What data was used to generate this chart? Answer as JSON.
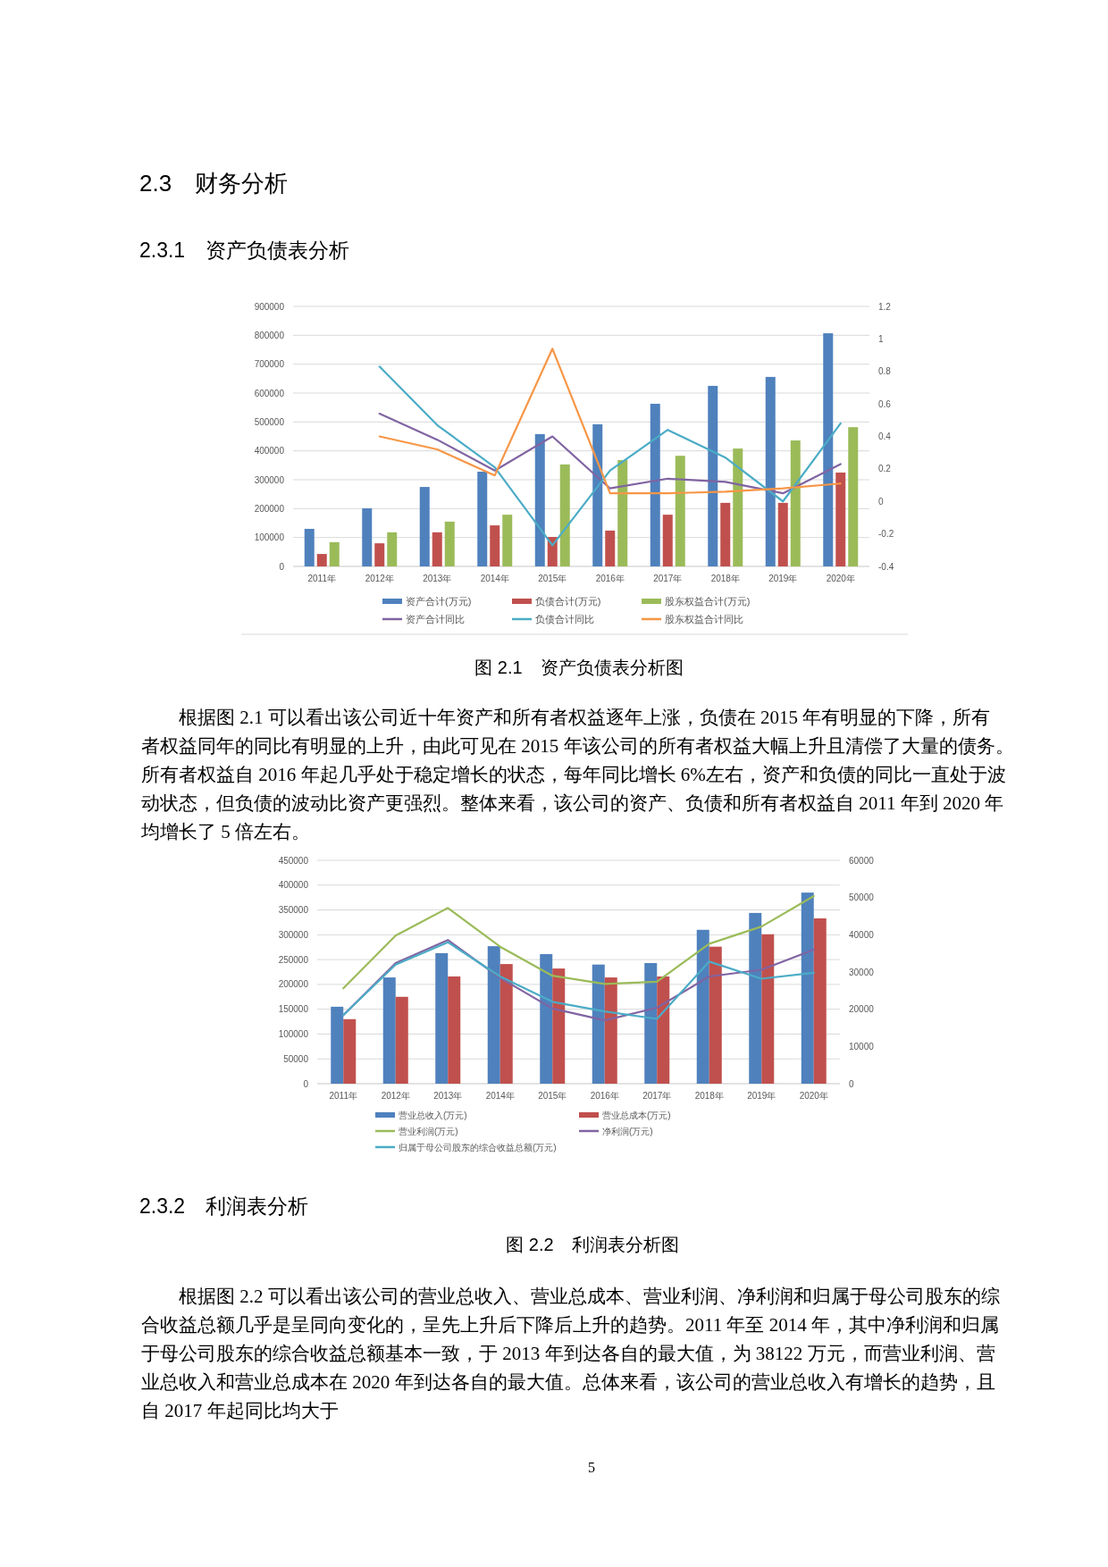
{
  "chart_data": [
    {
      "type": "bar",
      "title": "图 2.1　资产负债表分析图",
      "annotations": [
        "2.3　财务分析",
        "2.3.1　资产负债表分析",
        "根据图 2.1 可以看出该公司近十年资产和所有者权益逐年上涨，负债在 2015 年有明显的下降，所有者权益同年的同比有明显的上升，由此可见在 2015 年该公司的所有者权益大幅上升且清偿了大量的债务。所有者权益自 2016 年起几乎处于稳定增长的状态，每年同比增长 6%左右，资产和负债的同比一直处于波动状态，但负债的波动比资产更强烈。整体来看，该公司的资产、负债和所有者权益自 2011 年到 2020 年均增长了 5 倍左右。"
      ],
      "categories": [
        "2011年",
        "2012年",
        "2013年",
        "2014年",
        "2015年",
        "2016年",
        "2017年",
        "2018年",
        "2019年",
        "2020年"
      ],
      "series": [
        {
          "name": "资产合计(万元)",
          "color": "#4f81bd",
          "values": [
            130000,
            201000,
            275000,
            328000,
            458000,
            492000,
            563000,
            625000,
            656000,
            807000
          ]
        },
        {
          "name": "负债合计(万元)",
          "color": "#c0504d",
          "values": [
            43000,
            80000,
            118000,
            142000,
            102000,
            124000,
            179000,
            220000,
            220000,
            325000
          ]
        },
        {
          "name": "股东权益合计(万元)",
          "color": "#9bbb59",
          "values": [
            84000,
            118000,
            155000,
            179000,
            353000,
            368000,
            383000,
            408000,
            436000,
            482000
          ]
        },
        {
          "name": "资产合计同比",
          "type": "line",
          "axis": "y2",
          "color": "#8064a2",
          "values": [
            null,
            0.54,
            0.38,
            0.19,
            0.4,
            0.08,
            0.14,
            0.12,
            0.05,
            0.23
          ]
        },
        {
          "name": "负债合计同比",
          "type": "line",
          "axis": "y2",
          "color": "#4bacc6",
          "values": [
            null,
            0.83,
            0.47,
            0.21,
            -0.27,
            0.19,
            0.44,
            0.27,
            0.0,
            0.48
          ]
        },
        {
          "name": "股东权益合计同比",
          "type": "line",
          "axis": "y2",
          "color": "#f79646",
          "values": [
            null,
            0.4,
            0.32,
            0.16,
            0.94,
            0.05,
            0.05,
            0.06,
            0.08,
            0.11
          ]
        }
      ],
      "ylim": [
        0,
        900000
      ],
      "yticks": [
        0,
        100000,
        200000,
        300000,
        400000,
        500000,
        600000,
        700000,
        800000,
        900000
      ],
      "y2lim": [
        -0.4,
        1.2
      ],
      "y2ticks": [
        -0.4,
        -0.2,
        0,
        0.2,
        0.4,
        0.6,
        0.8,
        1,
        1.2
      ],
      "grid": "y",
      "legend": "bottom",
      "marker": "none"
    },
    {
      "type": "bar",
      "title": "图 2.2　利润表分析图",
      "annotations": [
        "2.3.2　利润表分析",
        "根据图 2.2 可以看出该公司的营业总收入、营业总成本、营业利润、净利润和归属于母公司股东的综合收益总额几乎是呈同向变化的，呈先上升后下降后上升的趋势。2011 年至 2014 年，其中净利润和归属于母公司股东的综合收益总额基本一致，于 2013 年到达各自的最大值，为 38122 万元，而营业利润、营业总收入和营业总成本在 2020 年到达各自的最大值。总体来看，该公司的营业总收入有增长的趋势，且自 2017 年起同比均大于",
        "5"
      ],
      "categories": [
        "2011年",
        "2012年",
        "2013年",
        "2014年",
        "2015年",
        "2016年",
        "2017年",
        "2018年",
        "2019年",
        "2020年"
      ],
      "series": [
        {
          "name": "营业总收入(万元)",
          "color": "#4f81bd",
          "values": [
            155000,
            214000,
            263000,
            277000,
            261000,
            240000,
            243000,
            310000,
            344000,
            385000
          ]
        },
        {
          "name": "营业总成本(万元)",
          "color": "#c0504d",
          "values": [
            130000,
            175000,
            216000,
            241000,
            232000,
            214000,
            216000,
            276000,
            301000,
            333000
          ]
        },
        {
          "name": "营业利润(万元)",
          "type": "line",
          "axis": "y2",
          "color": "#9bbb59",
          "values": [
            25600,
            39800,
            47200,
            36800,
            29000,
            26800,
            27400,
            37600,
            42200,
            50400
          ]
        },
        {
          "name": "净利润(万元)",
          "type": "line",
          "axis": "y2",
          "color": "#8064a2",
          "values": [
            18400,
            32400,
            38600,
            28400,
            20200,
            17000,
            20400,
            28800,
            30600,
            36000
          ]
        },
        {
          "name": "归属于母公司股东的综合收益总额(万元)",
          "type": "line",
          "axis": "y2",
          "color": "#4bacc6",
          "values": [
            18400,
            32000,
            38000,
            28800,
            22000,
            19400,
            17400,
            32800,
            28200,
            29800
          ]
        }
      ],
      "ylim": [
        0,
        450000
      ],
      "yticks": [
        0,
        50000,
        100000,
        150000,
        200000,
        250000,
        300000,
        350000,
        400000,
        450000
      ],
      "y2lim": [
        0,
        60000
      ],
      "y2ticks": [
        0,
        10000,
        20000,
        30000,
        40000,
        50000,
        60000
      ],
      "grid": "y",
      "legend": "bottom",
      "marker": "none"
    }
  ]
}
